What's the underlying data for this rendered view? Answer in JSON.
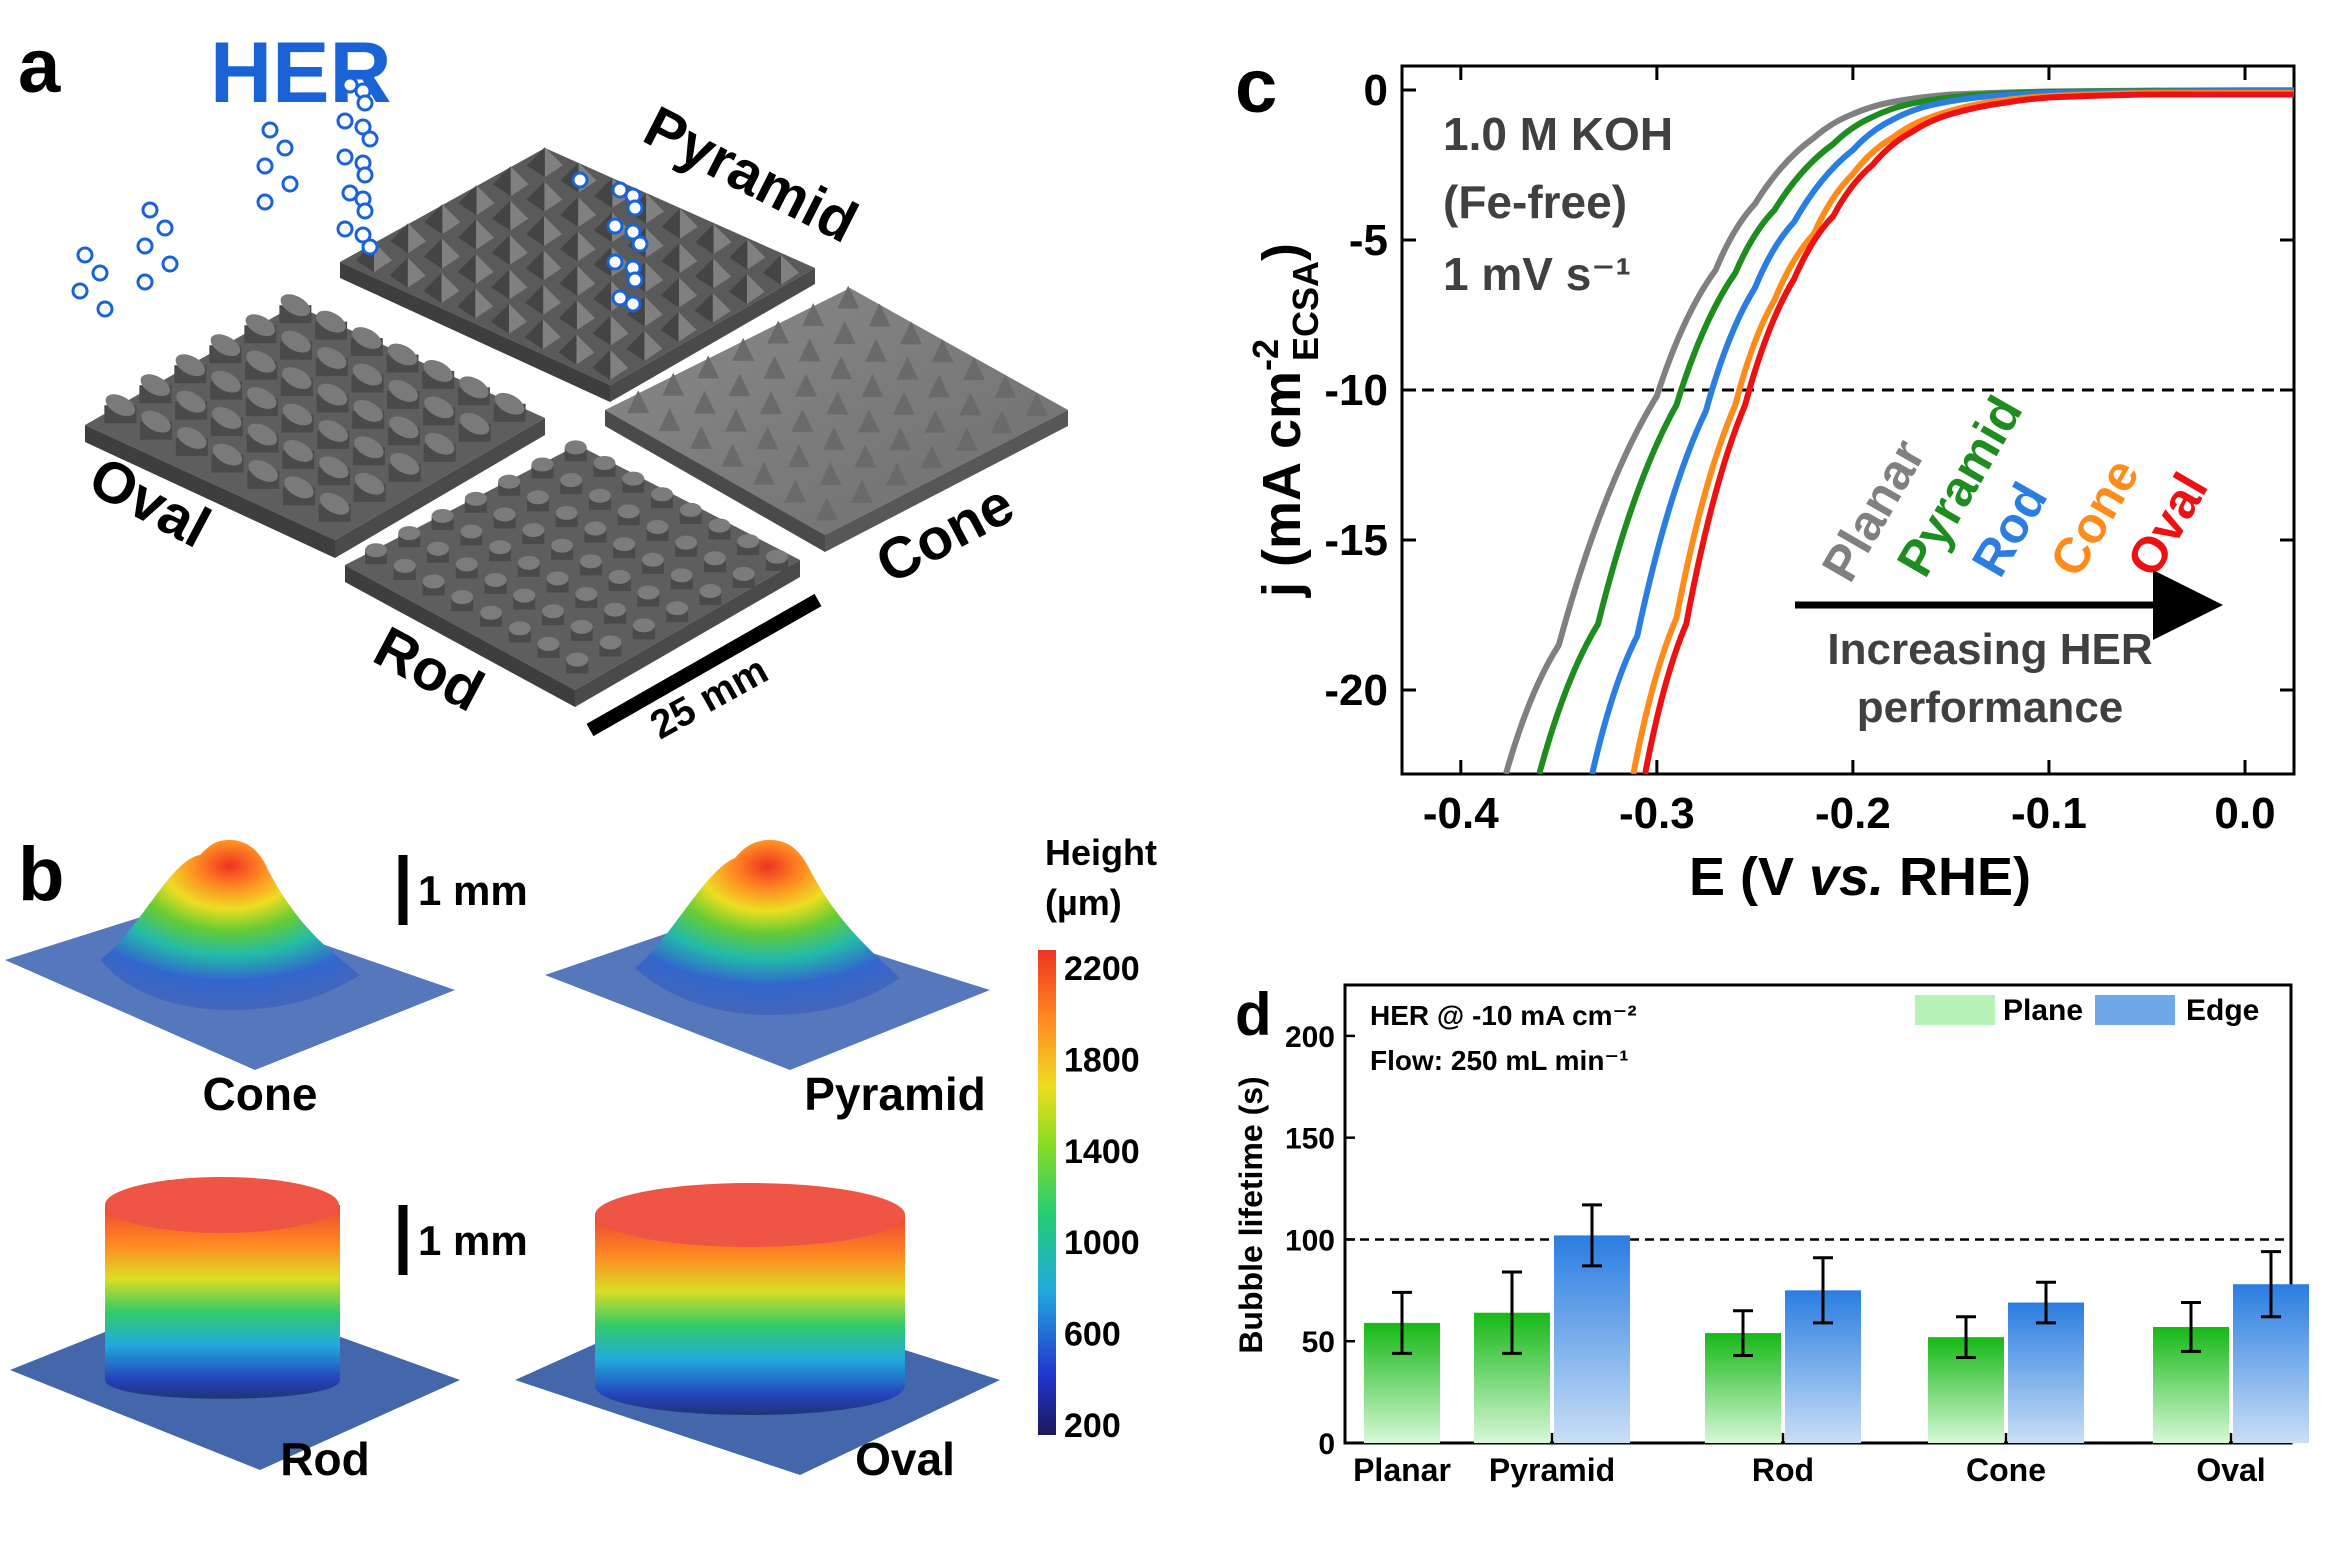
{
  "panel_a": {
    "label": "a",
    "title": "HER",
    "shapes": [
      "Pyramid",
      "Oval",
      "Cone",
      "Rod"
    ],
    "scale_bar": "25 mm"
  },
  "panel_b": {
    "label": "b",
    "scale_top": "1 mm",
    "scale_bottom": "1 mm",
    "shapes": [
      "Cone",
      "Pyramid",
      "Rod",
      "Oval"
    ],
    "colorbar_title_line1": "Height",
    "colorbar_title_line2": "(µm)",
    "colorbar_ticks": [
      "2200",
      "1800",
      "1400",
      "1000",
      "600",
      "200"
    ]
  },
  "colors": {
    "planar": "#808080",
    "pyramid": "#1e8c1e",
    "rod": "#2a7de1",
    "cone": "#ff8c1a",
    "oval": "#ee1111",
    "her_blue": "#1a63d6",
    "plane_bar": "#7ee07e",
    "edge_bar": "#5aa0e6"
  },
  "chart_data": [
    {
      "type": "line",
      "panel_label": "c",
      "xlabel": "E (V vs. RHE)",
      "ylabel": "j (mA cm⁻² ECSA)",
      "xlim": [
        -0.43,
        0.025
      ],
      "ylim": [
        -22.8,
        0.8
      ],
      "xticks": [
        -0.4,
        -0.3,
        -0.2,
        -0.1,
        0.0
      ],
      "xtick_labels": [
        "-0.4",
        "-0.3",
        "-0.2",
        "-0.1",
        "0.0"
      ],
      "yticks": [
        0,
        -5,
        -10,
        -15,
        -20
      ],
      "ytick_labels": [
        "0",
        "-5",
        "-10",
        "-15",
        "-20"
      ],
      "reference_line_y": -10,
      "annotation_line1": "1.0 M KOH",
      "annotation_line2": "(Fe-free)",
      "annotation_line3": "1 mV s⁻¹",
      "arrow_label_line1": "Increasing HER",
      "arrow_label_line2": "performance",
      "series": [
        {
          "name": "Planar",
          "color": "#808080",
          "x": [
            -0.377,
            -0.35,
            -0.3,
            -0.27,
            -0.25,
            -0.22,
            -0.2,
            -0.18,
            -0.15,
            -0.1,
            -0.05,
            0.0,
            0.025
          ],
          "y": [
            -22.8,
            -18.5,
            -10.2,
            -6.0,
            -3.8,
            -1.6,
            -0.8,
            -0.4,
            -0.15,
            -0.05,
            -0.02,
            -0.01,
            -0.01
          ]
        },
        {
          "name": "Pyramid",
          "color": "#1e8c1e",
          "x": [
            -0.36,
            -0.33,
            -0.29,
            -0.26,
            -0.24,
            -0.21,
            -0.19,
            -0.17,
            -0.14,
            -0.1,
            -0.05,
            0.0,
            0.025
          ],
          "y": [
            -22.8,
            -17.8,
            -10.5,
            -6.1,
            -4.0,
            -1.8,
            -0.9,
            -0.45,
            -0.18,
            -0.06,
            -0.03,
            -0.02,
            -0.02
          ]
        },
        {
          "name": "Rod",
          "color": "#2a7de1",
          "x": [
            -0.333,
            -0.31,
            -0.275,
            -0.25,
            -0.23,
            -0.2,
            -0.18,
            -0.16,
            -0.13,
            -0.1,
            -0.05,
            0.0,
            0.025
          ],
          "y": [
            -22.8,
            -18.2,
            -10.7,
            -6.6,
            -4.4,
            -2.0,
            -1.0,
            -0.5,
            -0.2,
            -0.1,
            -0.05,
            -0.03,
            -0.03
          ]
        },
        {
          "name": "Cone",
          "color": "#ff8c1a",
          "x": [
            -0.312,
            -0.29,
            -0.26,
            -0.24,
            -0.22,
            -0.2,
            -0.18,
            -0.16,
            -0.13,
            -0.1,
            -0.05,
            0.0,
            0.025
          ],
          "y": [
            -22.8,
            -17.6,
            -10.5,
            -7.0,
            -4.8,
            -2.8,
            -1.6,
            -0.9,
            -0.4,
            -0.2,
            -0.1,
            -0.1,
            -0.1
          ]
        },
        {
          "name": "Oval",
          "color": "#ee1111",
          "x": [
            -0.306,
            -0.285,
            -0.255,
            -0.23,
            -0.21,
            -0.19,
            -0.17,
            -0.15,
            -0.12,
            -0.1,
            -0.05,
            0.0,
            0.025
          ],
          "y": [
            -22.8,
            -17.8,
            -10.5,
            -6.3,
            -4.2,
            -2.5,
            -1.4,
            -0.8,
            -0.4,
            -0.25,
            -0.15,
            -0.15,
            -0.15
          ]
        }
      ],
      "legend_order": [
        "Planar",
        "Pyramid",
        "Rod",
        "Cone",
        "Oval"
      ]
    },
    {
      "type": "bar",
      "panel_label": "d",
      "categories": [
        "Planar",
        "Pyramid",
        "Rod",
        "Cone",
        "Oval"
      ],
      "ylabel": "Bubble lifetime (s)",
      "ylim": [
        0,
        225
      ],
      "yticks": [
        0,
        50,
        100,
        150,
        200
      ],
      "ytick_labels": [
        "0",
        "50",
        "100",
        "150",
        "200"
      ],
      "reference_line_y": 100,
      "annotation_line1": "HER @ -10 mA cm⁻²",
      "annotation_line2": "Flow: 250 mL min⁻¹",
      "series": [
        {
          "name": "Plane",
          "color": "#7ee07e",
          "values": [
            59,
            64,
            54,
            52,
            57
          ],
          "errors": [
            15,
            20,
            11,
            10,
            12
          ]
        },
        {
          "name": "Edge",
          "color": "#5aa0e6",
          "values": [
            null,
            102,
            75,
            69,
            78
          ],
          "errors": [
            null,
            15,
            16,
            10,
            16
          ]
        }
      ]
    }
  ]
}
